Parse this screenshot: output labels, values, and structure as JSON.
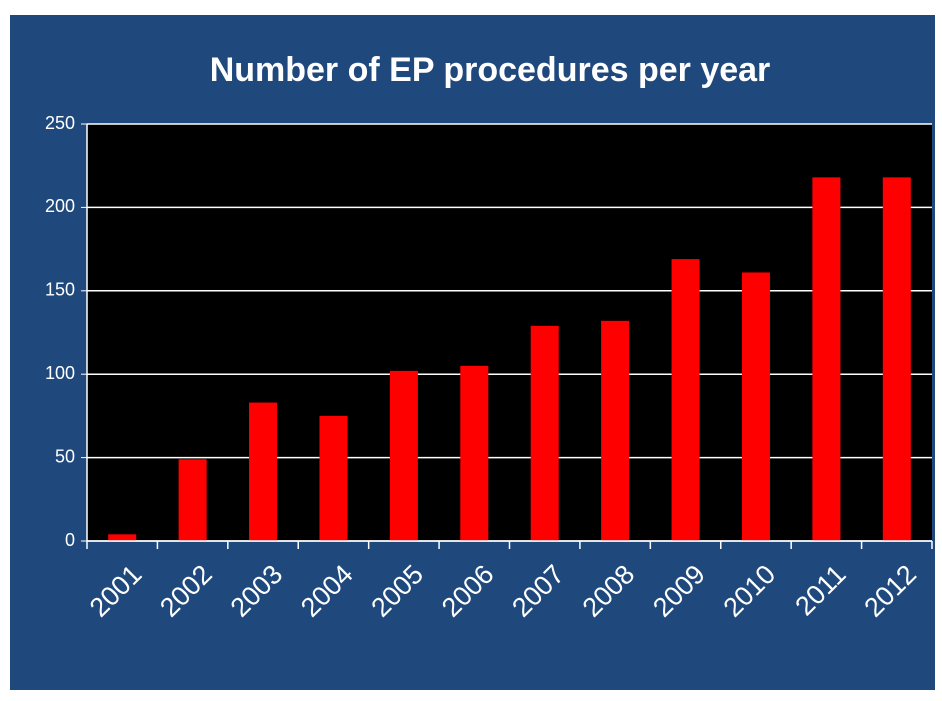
{
  "chart_data": {
    "type": "bar",
    "title": "Number of EP procedures per year",
    "categories": [
      "2001",
      "2002",
      "2003",
      "2004",
      "2005",
      "2006",
      "2007",
      "2008",
      "2009",
      "2010",
      "2011",
      "2012"
    ],
    "values": [
      4,
      49,
      83,
      75,
      102,
      105,
      129,
      132,
      169,
      161,
      218,
      218
    ],
    "color": "#ff0000",
    "ylim": [
      0,
      250
    ],
    "yticks": [
      0,
      50,
      100,
      150,
      200,
      250
    ],
    "grid": true
  }
}
